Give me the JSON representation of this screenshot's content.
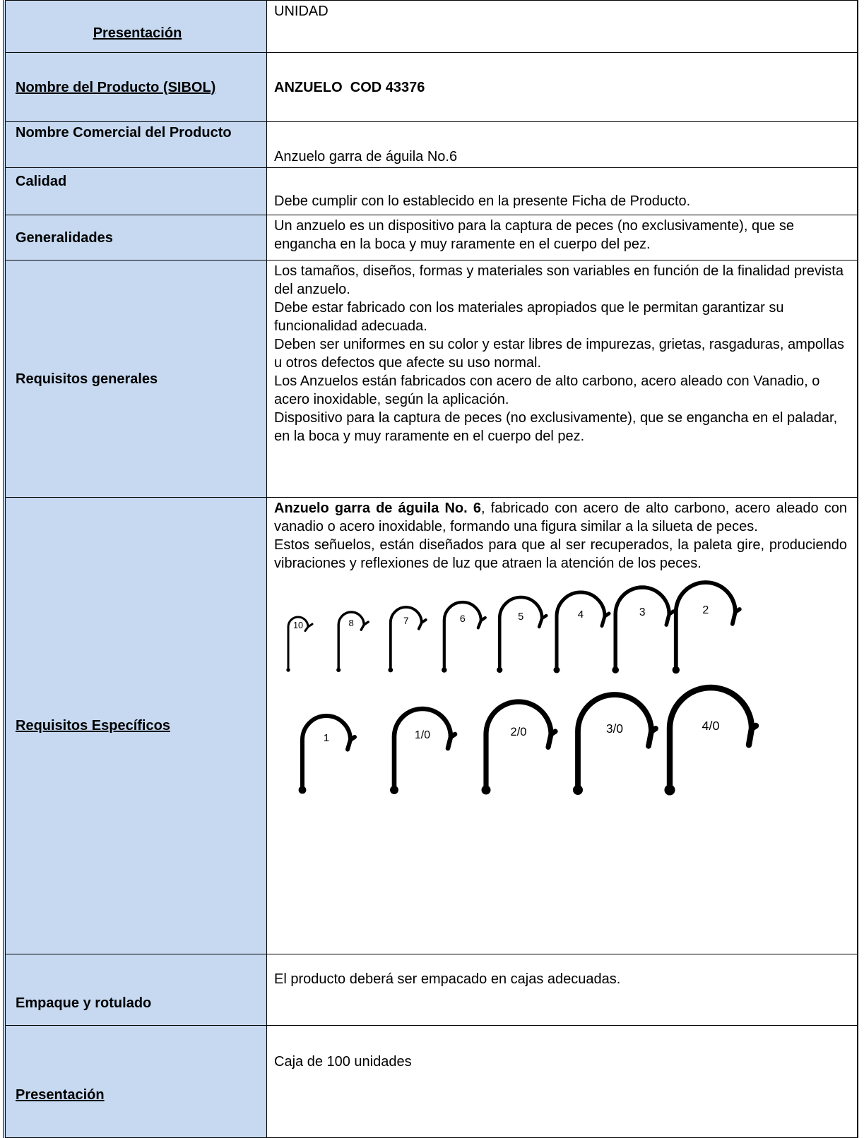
{
  "rows": [
    {
      "label": "Presentación",
      "value": "UNIDAD"
    },
    {
      "label": "Nombre del Producto (SIBOL)",
      "value": "ANZUELO  COD 43376"
    },
    {
      "label": "Nombre Comercial del Producto",
      "value": "Anzuelo garra de águila No.6"
    },
    {
      "label": "Calidad",
      "value": "Debe cumplir con lo establecido en la presente Ficha de Producto."
    },
    {
      "label": "Generalidades",
      "value": "Un anzuelo es un dispositivo para la captura de peces (no exclusivamente), que se engancha en la boca y muy raramente en el cuerpo del pez."
    },
    {
      "label": "Requisitos generales",
      "paragraphs": [
        "Los tamaños, diseños, formas y materiales son variables en función de la finalidad prevista del anzuelo.",
        "Debe estar fabricado con los materiales apropiados que le permitan garantizar su funcionalidad adecuada.",
        "Deben ser uniformes en su color y estar libres de impurezas, grietas, rasgaduras, ampollas u otros defectos que afecte su uso normal.",
        "Los Anzuelos están fabricados con acero de alto carbono, acero aleado con Vanadio, o acero inoxidable, según la aplicación.",
        "Dispositivo para la captura de peces (no exclusivamente), que se engancha en el paladar, en la boca y muy raramente en el cuerpo del pez."
      ]
    },
    {
      "label": "Requisitos Específicos",
      "value_bold": "Anzuelo garra de águila No. 6",
      "value": ", fabricado con acero de alto carbono, acero aleado con vanadio o acero inoxidable, formando una figura similar a la silueta de peces.",
      "paragraphs": [
        "Estos señuelos, están diseñados para que al ser recuperados, la paleta gire, produciendo vibraciones y reflexiones de luz que atraen la atención de los peces."
      ],
      "figure": {
        "row1": [
          "10",
          "8",
          "7",
          "6",
          "5",
          "4",
          "3",
          "2"
        ],
        "row2": [
          "1",
          "1/0",
          "2/0",
          "3/0",
          "4/0"
        ]
      }
    },
    {
      "label": "Empaque  y rotulado",
      "value": "El producto deberá ser empacado en cajas adecuadas."
    },
    {
      "label": "Presentación",
      "value": "Caja de 100 unidades"
    }
  ]
}
